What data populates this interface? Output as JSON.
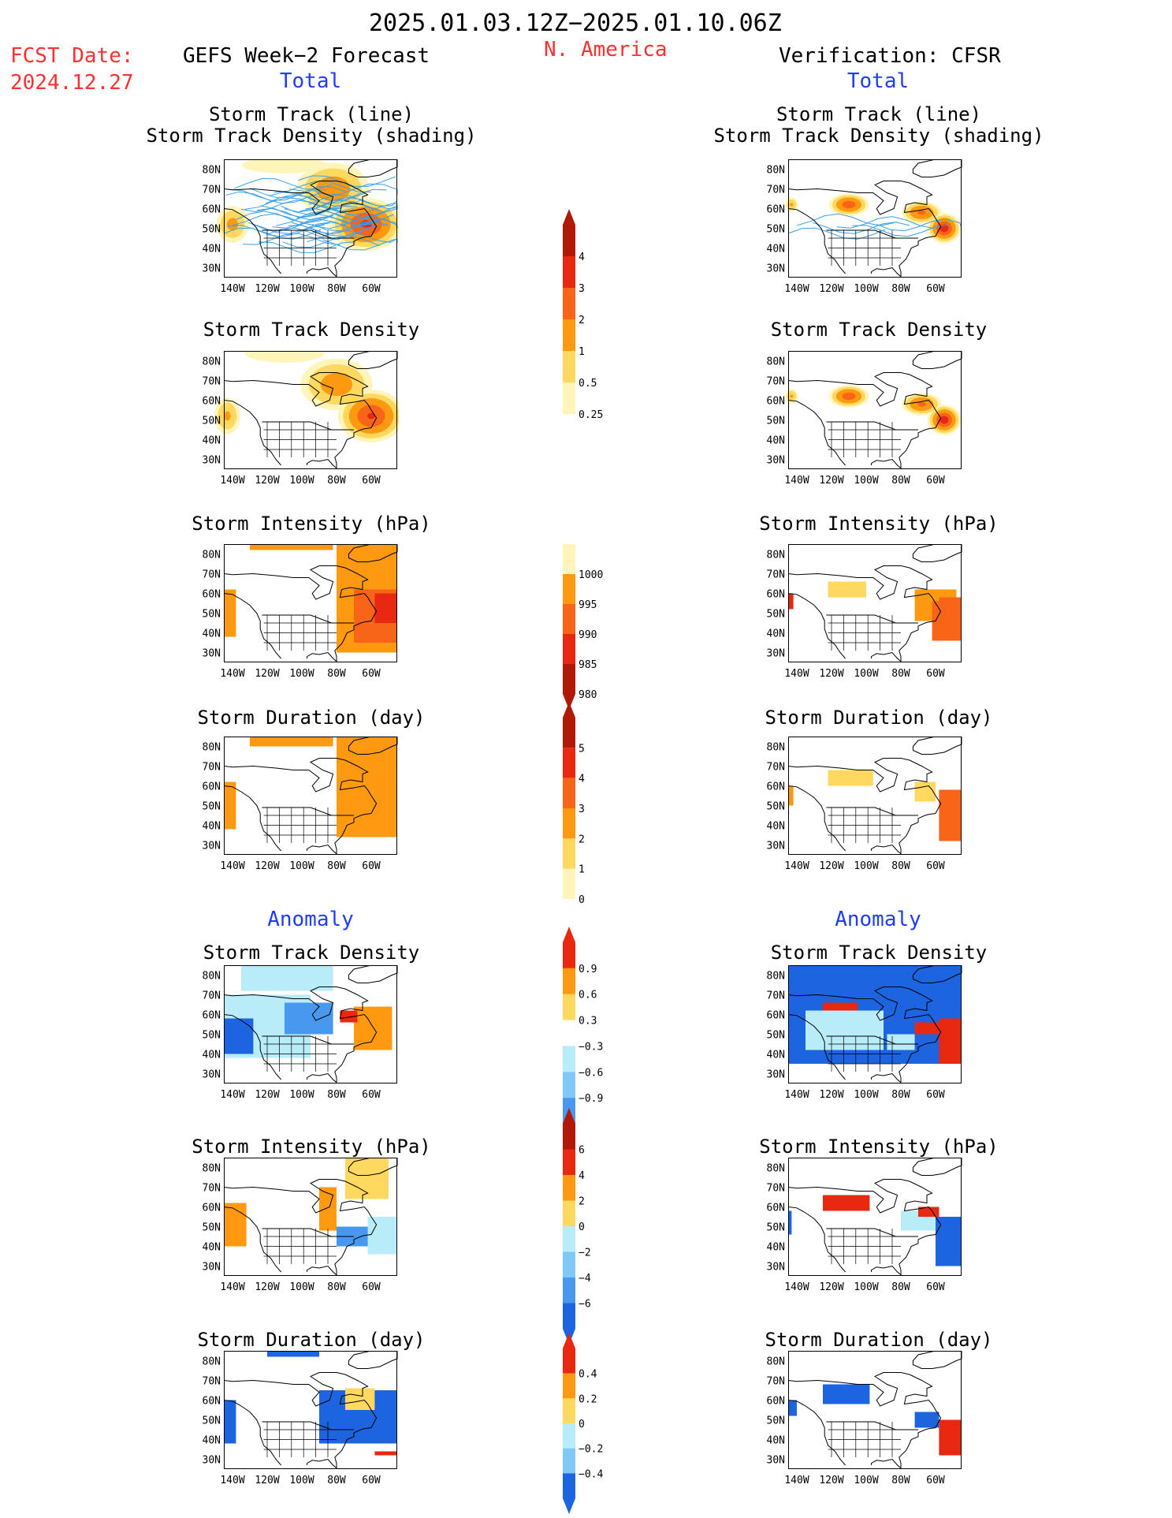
{
  "header": {
    "date_range": "2025.01.03.12Z−2025.01.10.06Z",
    "region": "N. America",
    "fcst_label": "FCST Date:",
    "fcst_date": "2024.12.27",
    "left_title": "GEFS Week−2 Forecast",
    "right_title": "Verification: CFSR",
    "total_label": "Total",
    "anomaly_label": "Anomaly"
  },
  "map_axes": {
    "lat_ticks": [
      "80N",
      "70N",
      "60N",
      "50N",
      "40N",
      "30N"
    ],
    "lon_ticks": [
      "140W",
      "120W",
      "100W",
      "80W",
      "60W"
    ]
  },
  "panel_titles": {
    "track": [
      "Storm Track (line)",
      "Storm Track Density (shading)"
    ],
    "density": "Storm Track Density",
    "intensity": "Storm Intensity (hPa)",
    "duration": "Storm Duration (day)"
  },
  "colors": {
    "pale_yellow": "#fff5b8",
    "yellow": "#ffd860",
    "light_orange": "#ffb840",
    "orange": "#ff9a10",
    "dark_orange": "#f86418",
    "red": "#e82810",
    "dark_red": "#b01808",
    "pale_blue": "#b8ecf8",
    "light_blue": "#80c8f8",
    "mid_blue": "#4898f0",
    "blue": "#1c64e0",
    "track_line": "#3aa0e8"
  },
  "chart_data": [
    {
      "type": "heatmap",
      "name": "forecast_total_track",
      "panel": "Storm Track (line) / Storm Track Density (shading)",
      "xlim": [
        -145,
        -45
      ],
      "ylim": [
        25,
        85
      ],
      "x_ticks": [
        -140,
        -120,
        -100,
        -80,
        -60
      ],
      "y_ticks": [
        30,
        40,
        50,
        60,
        70,
        80
      ],
      "has_track_lines": true,
      "blobs": [
        [
          -63,
          52,
          22,
          14,
          3.2
        ],
        [
          -82,
          70,
          22,
          14,
          1.5
        ],
        [
          -140,
          52,
          10,
          10,
          1.2
        ],
        [
          -110,
          82,
          30,
          5,
          0.4
        ]
      ],
      "max": 4
    },
    {
      "type": "heatmap",
      "name": "verification_total_track",
      "panel": "Storm Track (line) / Storm Track Density (shading)",
      "xlim": [
        -145,
        -45
      ],
      "ylim": [
        25,
        85
      ],
      "has_track_lines": true,
      "blobs": [
        [
          -110,
          62,
          12,
          6,
          2.6
        ],
        [
          -55,
          50,
          10,
          8,
          3.6
        ],
        [
          -68,
          58,
          12,
          6,
          2.2
        ],
        [
          -143,
          62,
          4,
          4,
          1.0
        ]
      ],
      "max": 4
    },
    {
      "type": "heatmap",
      "name": "forecast_total_density",
      "panel": "Storm Track Density",
      "xlim": [
        -145,
        -45
      ],
      "ylim": [
        25,
        85
      ],
      "blobs": [
        [
          -60,
          52,
          20,
          14,
          3.1
        ],
        [
          -80,
          68,
          22,
          14,
          1.4
        ],
        [
          -143,
          52,
          8,
          10,
          1.1
        ],
        [
          -110,
          84,
          28,
          6,
          0.4
        ]
      ],
      "max": 4
    },
    {
      "type": "heatmap",
      "name": "verification_total_density",
      "panel": "Storm Track Density",
      "xlim": [
        -145,
        -45
      ],
      "ylim": [
        25,
        85
      ],
      "blobs": [
        [
          -110,
          62,
          12,
          6,
          2.6
        ],
        [
          -55,
          50,
          10,
          8,
          3.6
        ],
        [
          -68,
          58,
          12,
          6,
          2.2
        ],
        [
          -143,
          62,
          4,
          4,
          1.0
        ]
      ],
      "max": 4
    },
    {
      "type": "heatmap",
      "name": "forecast_total_intensity",
      "panel": "Storm Intensity (hPa)",
      "units": "hPa",
      "rects": [
        [
          -80,
          -45,
          30,
          85,
          2
        ],
        [
          -70,
          -45,
          35,
          62,
          3
        ],
        [
          -58,
          -45,
          45,
          60,
          4
        ],
        [
          -145,
          -138,
          38,
          62,
          2
        ],
        [
          -130,
          -82,
          82,
          85,
          2
        ]
      ]
    },
    {
      "type": "heatmap",
      "name": "verification_total_intensity",
      "panel": "Storm Intensity (hPa)",
      "units": "hPa",
      "rects": [
        [
          -122,
          -100,
          58,
          66,
          1
        ],
        [
          -72,
          -48,
          46,
          62,
          2
        ],
        [
          -62,
          -45,
          36,
          58,
          3
        ],
        [
          -145,
          -142,
          52,
          60,
          4
        ],
        [
          -68,
          -58,
          56,
          60,
          2
        ]
      ]
    },
    {
      "type": "heatmap",
      "name": "forecast_total_duration",
      "panel": "Storm Duration (day)",
      "units": "day",
      "rects": [
        [
          -80,
          -45,
          34,
          85,
          2
        ],
        [
          -130,
          -82,
          80,
          85,
          2
        ],
        [
          -145,
          -138,
          38,
          62,
          2
        ]
      ]
    },
    {
      "type": "heatmap",
      "name": "verification_total_duration",
      "panel": "Storm Duration (day)",
      "units": "day",
      "rects": [
        [
          -122,
          -96,
          60,
          68,
          1
        ],
        [
          -72,
          -60,
          52,
          62,
          1
        ],
        [
          -58,
          -45,
          32,
          58,
          3
        ],
        [
          -145,
          -142,
          50,
          60,
          2
        ]
      ]
    },
    {
      "type": "heatmap",
      "name": "forecast_anom_density",
      "panel": "Storm Track Density",
      "rects": [
        [
          -135,
          -82,
          72,
          85,
          -1
        ],
        [
          -145,
          -95,
          38,
          70,
          -1
        ],
        [
          -145,
          -128,
          40,
          58,
          -3
        ],
        [
          -110,
          -82,
          50,
          66,
          -2
        ],
        [
          -70,
          -48,
          42,
          64,
          2
        ],
        [
          -78,
          -68,
          56,
          62,
          3
        ]
      ]
    },
    {
      "type": "heatmap",
      "name": "verification_anom_density",
      "panel": "Storm Track Density",
      "rects": [
        [
          -145,
          -45,
          35,
          85,
          -3
        ],
        [
          -135,
          -90,
          42,
          62,
          -1
        ],
        [
          -125,
          -105,
          62,
          66,
          3
        ],
        [
          -72,
          -56,
          50,
          56,
          3
        ],
        [
          -58,
          -45,
          35,
          58,
          3
        ],
        [
          -88,
          -72,
          42,
          50,
          -1
        ]
      ]
    },
    {
      "type": "heatmap",
      "name": "forecast_anom_intensity",
      "panel": "Storm Intensity (hPa)",
      "rects": [
        [
          -145,
          -132,
          40,
          62,
          2
        ],
        [
          -90,
          -80,
          48,
          70,
          2
        ],
        [
          -62,
          -45,
          36,
          55,
          -1
        ],
        [
          -80,
          -62,
          40,
          50,
          -2
        ],
        [
          -75,
          -50,
          64,
          85,
          1
        ]
      ]
    },
    {
      "type": "heatmap",
      "name": "verification_anom_intensity",
      "panel": "Storm Intensity (hPa)",
      "rects": [
        [
          -125,
          -98,
          58,
          66,
          3
        ],
        [
          -145,
          -143,
          46,
          58,
          -3
        ],
        [
          -60,
          -45,
          30,
          55,
          -3
        ],
        [
          -80,
          -60,
          48,
          58,
          -1
        ],
        [
          -70,
          -58,
          55,
          60,
          3
        ]
      ]
    },
    {
      "type": "heatmap",
      "name": "forecast_anom_duration",
      "panel": "Storm Duration (day)",
      "rects": [
        [
          -145,
          -138,
          38,
          60,
          -3
        ],
        [
          -90,
          -45,
          38,
          65,
          -3
        ],
        [
          -75,
          -58,
          55,
          66,
          1
        ],
        [
          -120,
          -90,
          82,
          85,
          -3
        ],
        [
          -58,
          -45,
          32,
          34,
          3
        ]
      ]
    },
    {
      "type": "heatmap",
      "name": "verification_anom_duration",
      "panel": "Storm Duration (day)",
      "rects": [
        [
          -125,
          -98,
          58,
          68,
          -3
        ],
        [
          -72,
          -58,
          46,
          54,
          -3
        ],
        [
          -58,
          -45,
          32,
          50,
          3
        ],
        [
          -145,
          -140,
          52,
          60,
          -3
        ]
      ]
    }
  ],
  "colorbars": {
    "density_total": [
      "0.25",
      "0.5",
      "1",
      "2",
      "3",
      "4"
    ],
    "intensity_total": [
      "1000",
      "995",
      "990",
      "985",
      "980"
    ],
    "duration_total": [
      "0",
      "1",
      "2",
      "3",
      "4",
      "5"
    ],
    "density_anom": [
      "−0.9",
      "−0.6",
      "−0.3",
      "0.3",
      "0.6",
      "0.9"
    ],
    "intensity_anom": [
      "−6",
      "−4",
      "−2",
      "0",
      "2",
      "4",
      "6"
    ],
    "duration_anom": [
      "−0.4",
      "−0.2",
      "0",
      "0.2",
      "0.4"
    ]
  }
}
